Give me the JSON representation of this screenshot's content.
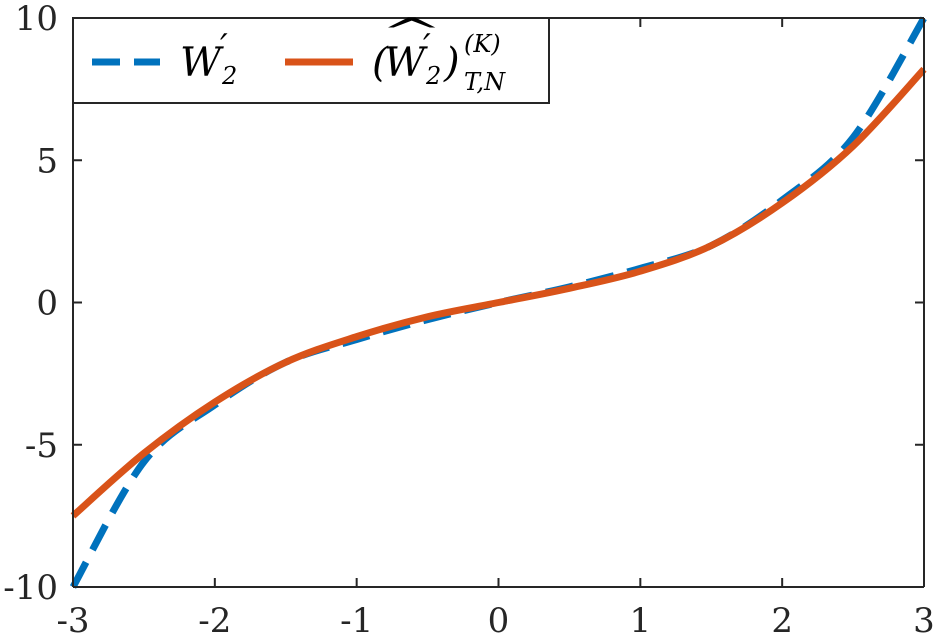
{
  "chart_data": {
    "type": "line",
    "xlim": [
      -3,
      3
    ],
    "ylim": [
      -10,
      10
    ],
    "x_ticks": [
      "-3",
      "-2",
      "-1",
      "0",
      "1",
      "2",
      "3"
    ],
    "y_ticks": [
      "10",
      "5",
      "0",
      "-5",
      "-10"
    ],
    "grid": false,
    "legend_position": "top-left",
    "series": [
      {
        "name": "W_2'",
        "style": "dashed",
        "color": "#0072BD",
        "x": [
          -3,
          -2.5,
          -2,
          -1.5,
          -1,
          -0.5,
          0,
          0.5,
          1,
          1.5,
          2,
          2.5,
          3
        ],
        "y": [
          -10,
          -5.6,
          -3.6,
          -2.1,
          -1.3,
          -0.6,
          0,
          0.55,
          1.2,
          2.0,
          3.6,
          5.8,
          10
        ]
      },
      {
        "name": "(\\widehat{W}_2')_{T,N}^{(K)}",
        "style": "solid",
        "color": "#D95319",
        "x": [
          -3,
          -2.5,
          -2,
          -1.5,
          -1,
          -0.5,
          0,
          0.5,
          1,
          1.5,
          2,
          2.5,
          3
        ],
        "y": [
          -7.5,
          -5.3,
          -3.5,
          -2.1,
          -1.2,
          -0.5,
          0,
          0.5,
          1.1,
          2.0,
          3.5,
          5.5,
          8.2
        ]
      }
    ]
  },
  "legend": {
    "series1": {
      "base": "W",
      "prime": "′",
      "sub": "2"
    },
    "series2": {
      "open": "(",
      "base": "W",
      "hat": "^",
      "prime": "′",
      "sub": "2",
      "close": ")",
      "sup": "(K)",
      "lower": "T,N"
    }
  }
}
